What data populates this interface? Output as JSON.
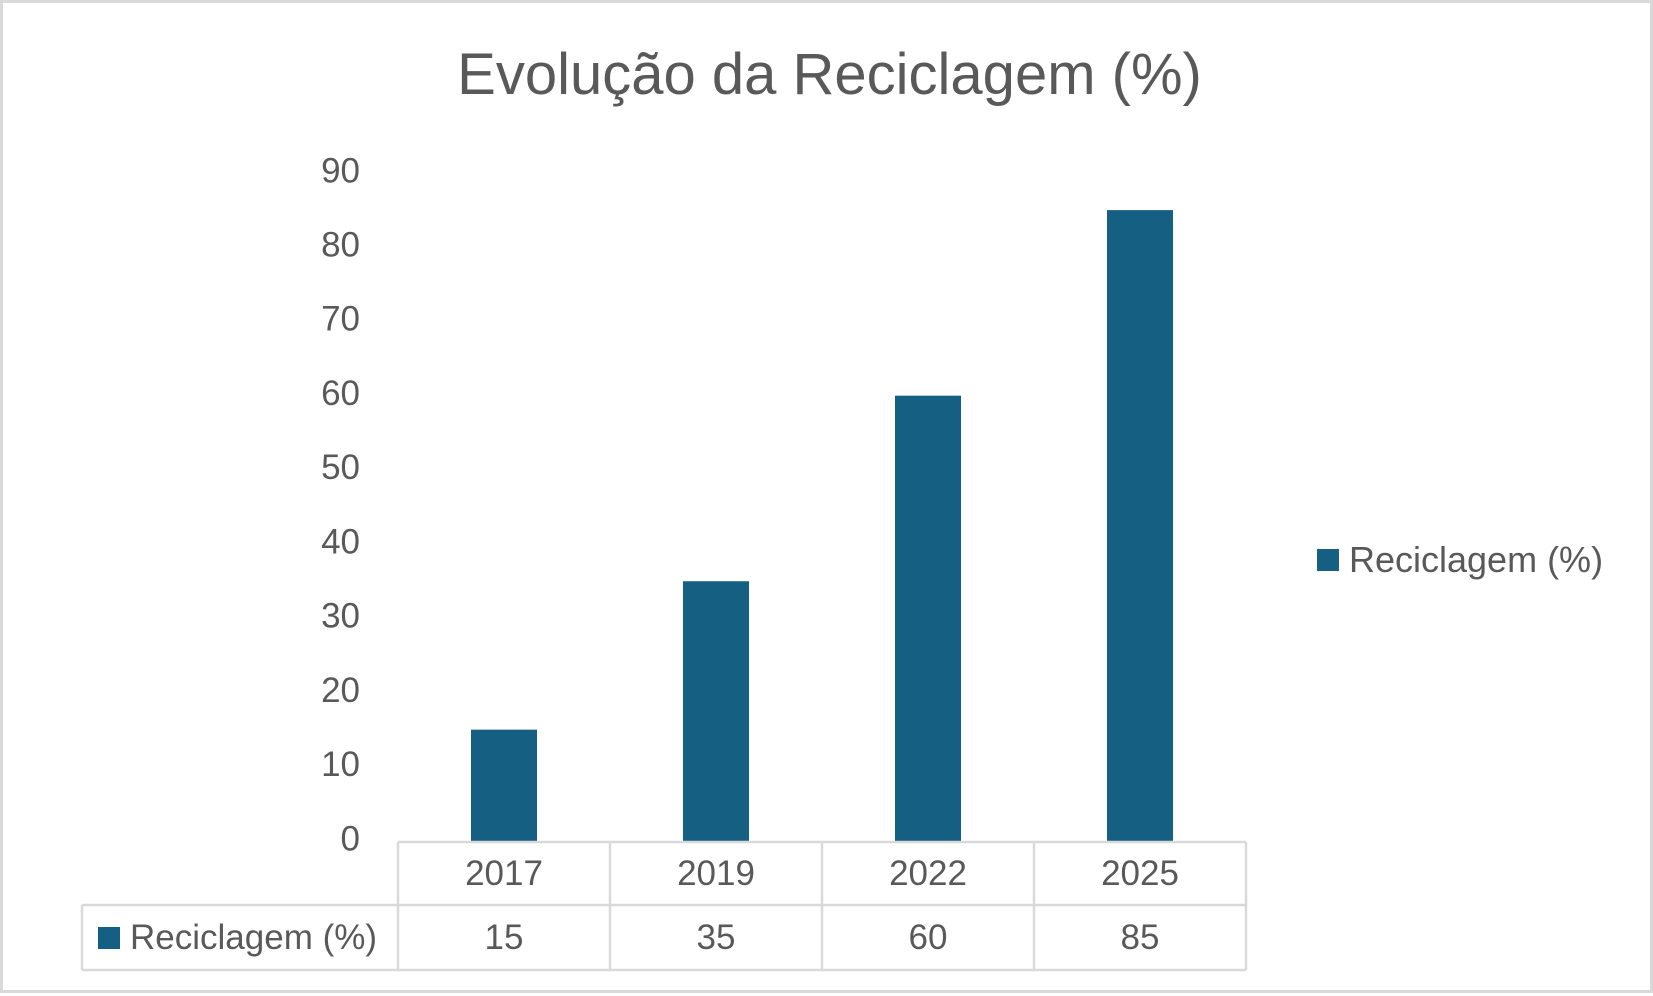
{
  "chart_data": {
    "type": "bar",
    "title": "Evolução da Reciclagem (%)",
    "categories": [
      "2017",
      "2019",
      "2022",
      "2025"
    ],
    "series": [
      {
        "name": "Reciclagem (%)",
        "values": [
          15,
          35,
          60,
          85
        ],
        "color": "#155f82"
      }
    ],
    "ylim": [
      0,
      90
    ],
    "yticks": [
      "0",
      "10",
      "20",
      "30",
      "40",
      "50",
      "60",
      "70",
      "80",
      "90"
    ],
    "xlabel": "",
    "ylabel": "",
    "grid": false,
    "legend_position": "right",
    "data_table": true
  }
}
